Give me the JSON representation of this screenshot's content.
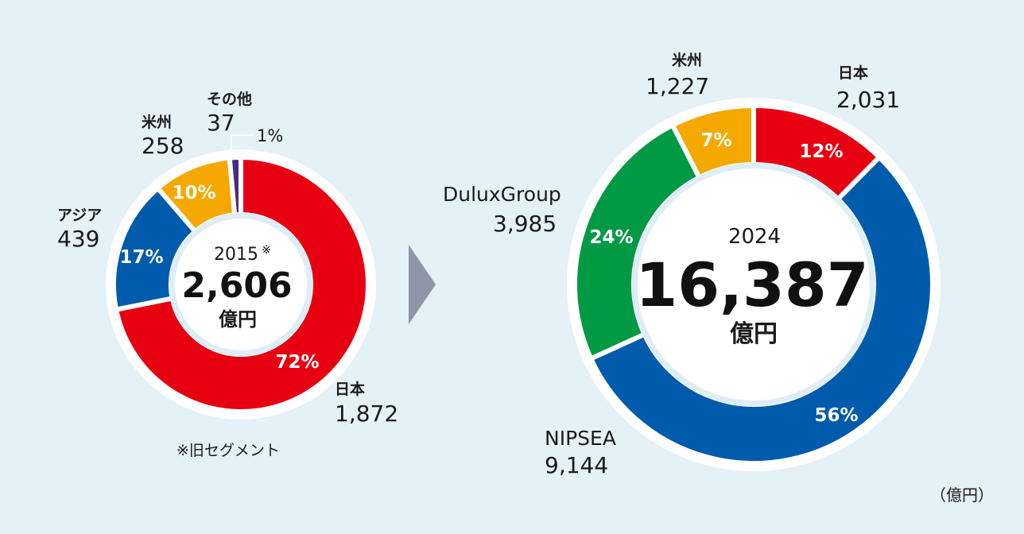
{
  "chart_data": [
    {
      "type": "pie",
      "year": "2015",
      "year_mark": "※",
      "total": "2,606",
      "unit": "億円",
      "note": "※旧セグメント",
      "slices": [
        {
          "name": "日本",
          "value": "1,872",
          "pct": "72%",
          "v": 1872,
          "color": "#e60012"
        },
        {
          "name": "アジア",
          "value": "439",
          "pct": "17%",
          "v": 439,
          "color": "#005bac"
        },
        {
          "name": "米州",
          "value": "258",
          "pct": "10%",
          "v": 258,
          "color": "#f5a800"
        },
        {
          "name": "その他",
          "value": "37",
          "pct": "1%",
          "v": 37,
          "color": "#4b2a86"
        }
      ]
    },
    {
      "type": "pie",
      "year": "2024",
      "total": "16,387",
      "unit": "億円",
      "slices": [
        {
          "name": "日本",
          "value": "2,031",
          "pct": "12%",
          "v": 2031,
          "color": "#e60012"
        },
        {
          "name": "NIPSEA",
          "value": "9,144",
          "pct": "56%",
          "v": 9144,
          "color": "#005bac"
        },
        {
          "name": "DuluxGroup",
          "value": "3,985",
          "pct": "24%",
          "v": 3985,
          "color": "#009a44"
        },
        {
          "name": "米州",
          "value": "1,227",
          "pct": "7%",
          "v": 1227,
          "color": "#f5a800"
        }
      ]
    }
  ],
  "unit_note": "（億円）"
}
